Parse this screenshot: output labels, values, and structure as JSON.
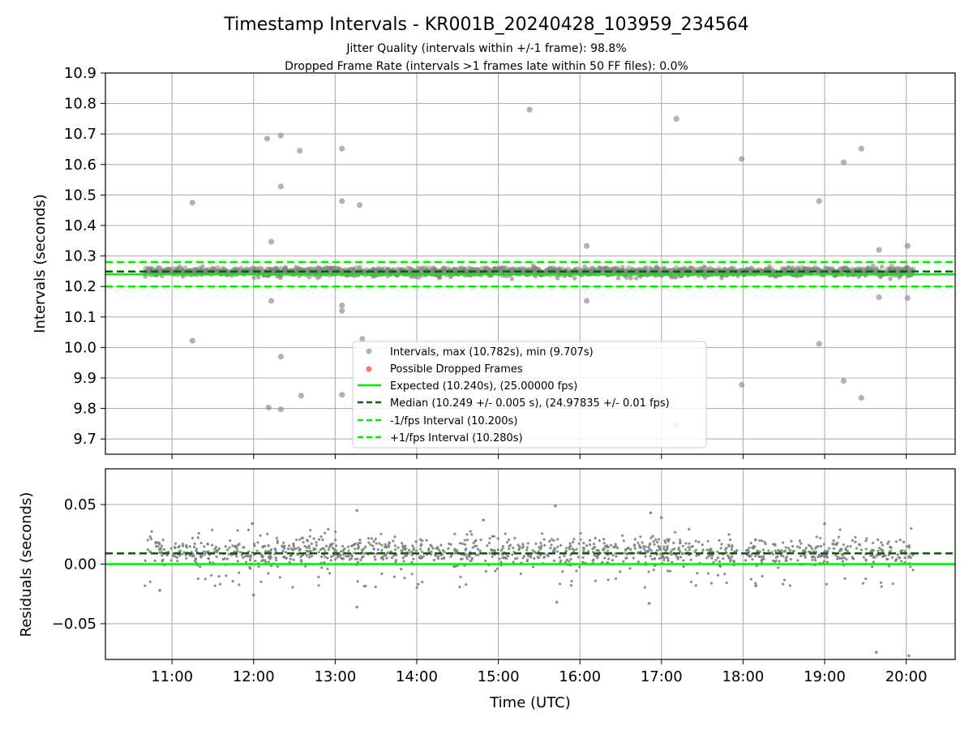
{
  "figure": {
    "title": "Timestamp Intervals - KR001B_20240428_103959_234564",
    "subtitle1": "Jitter Quality (intervals within +/-1 frame): 98.8%",
    "subtitle2": "Dropped Frame Rate (intervals >1 frames late within 50 FF files): 0.0%",
    "xlabel": "Time (UTC)"
  },
  "colors": {
    "intervals": "#808080",
    "dropped": "#ff0000",
    "expected": "#00ee00",
    "median": "#006400",
    "bounds": "#00ee00",
    "grid": "#b0b0b0"
  },
  "chart_data": [
    {
      "type": "scatter",
      "ylabel": "Intervals (seconds)",
      "ylim": [
        9.65,
        10.9
      ],
      "xlim": [
        "10:11",
        "20:36"
      ],
      "y_ticks": [
        "9.7",
        "9.8",
        "9.9",
        "10.0",
        "10.1",
        "10.2",
        "10.3",
        "10.4",
        "10.5",
        "10.6",
        "10.7",
        "10.8",
        "10.9"
      ],
      "x_ticks": [
        "11:00",
        "12:00",
        "13:00",
        "14:00",
        "15:00",
        "16:00",
        "17:00",
        "18:00",
        "19:00",
        "20:00"
      ],
      "grid": true,
      "legend_position": "lower-center",
      "legend": [
        "Intervals, max (10.782s), min (9.707s)",
        "Possible Dropped Frames",
        "Expected (10.240s), (25.00000 fps)",
        "Median (10.249 +/- 0.005 s), (24.97835 +/- 0.01 fps)",
        "-1/fps Interval (10.200s)",
        "+1/fps Interval (10.280s)"
      ],
      "reference_lines": {
        "expected": 10.24,
        "median": 10.249,
        "lower_bound": 10.2,
        "upper_bound": 10.28
      },
      "band": {
        "x_start": "10:40",
        "x_end": "20:05",
        "y_low": 10.225,
        "y_high": 10.27
      },
      "outliers": [
        {
          "x": "11:15",
          "y": 10.475
        },
        {
          "x": "11:15",
          "y": 10.022
        },
        {
          "x": "12:10",
          "y": 10.685
        },
        {
          "x": "12:13",
          "y": 10.347
        },
        {
          "x": "12:13",
          "y": 10.153
        },
        {
          "x": "12:11",
          "y": 9.803
        },
        {
          "x": "12:20",
          "y": 10.695
        },
        {
          "x": "12:20",
          "y": 10.528
        },
        {
          "x": "12:20",
          "y": 9.97
        },
        {
          "x": "12:20",
          "y": 9.797
        },
        {
          "x": "12:34",
          "y": 10.645
        },
        {
          "x": "12:35",
          "y": 9.842
        },
        {
          "x": "13:05",
          "y": 10.652
        },
        {
          "x": "13:05",
          "y": 10.48
        },
        {
          "x": "13:05",
          "y": 10.138
        },
        {
          "x": "13:05",
          "y": 10.12
        },
        {
          "x": "13:05",
          "y": 9.845
        },
        {
          "x": "13:18",
          "y": 10.467
        },
        {
          "x": "13:20",
          "y": 10.028
        },
        {
          "x": "15:23",
          "y": 10.78
        },
        {
          "x": "16:05",
          "y": 10.333
        },
        {
          "x": "16:05",
          "y": 10.153
        },
        {
          "x": "17:11",
          "y": 10.75
        },
        {
          "x": "17:11",
          "y": 9.745
        },
        {
          "x": "17:59",
          "y": 10.618
        },
        {
          "x": "17:59",
          "y": 9.878
        },
        {
          "x": "18:56",
          "y": 10.48
        },
        {
          "x": "18:56",
          "y": 10.012
        },
        {
          "x": "19:14",
          "y": 10.607
        },
        {
          "x": "19:14",
          "y": 9.89
        },
        {
          "x": "19:27",
          "y": 10.652
        },
        {
          "x": "19:27",
          "y": 9.835
        },
        {
          "x": "19:40",
          "y": 10.32
        },
        {
          "x": "19:40",
          "y": 10.165
        },
        {
          "x": "20:01",
          "y": 10.333
        },
        {
          "x": "20:01",
          "y": 10.162
        }
      ]
    },
    {
      "type": "scatter",
      "ylabel": "Residuals (seconds)",
      "ylim": [
        -0.08,
        0.08
      ],
      "xlim": [
        "10:11",
        "20:36"
      ],
      "y_ticks": [
        "−0.05",
        "0.00",
        "0.05"
      ],
      "x_ticks": [
        "11:00",
        "12:00",
        "13:00",
        "14:00",
        "15:00",
        "16:00",
        "17:00",
        "18:00",
        "19:00",
        "20:00"
      ],
      "grid": true,
      "reference_lines": {
        "zero": 0.0,
        "median_offset": 0.009
      },
      "band": {
        "x_start": "10:40",
        "x_end": "20:05",
        "y_low": -0.005,
        "y_high": 0.025
      },
      "outliers": [
        {
          "x": "15:42",
          "y": 0.049
        },
        {
          "x": "13:16",
          "y": 0.045
        },
        {
          "x": "16:52",
          "y": 0.043
        },
        {
          "x": "17:00",
          "y": 0.039
        },
        {
          "x": "14:49",
          "y": 0.037
        },
        {
          "x": "11:59",
          "y": 0.034
        },
        {
          "x": "19:00",
          "y": 0.034
        },
        {
          "x": "13:16",
          "y": -0.036
        },
        {
          "x": "15:43",
          "y": -0.032
        },
        {
          "x": "16:51",
          "y": -0.033
        },
        {
          "x": "12:00",
          "y": -0.026
        },
        {
          "x": "19:38",
          "y": -0.074
        },
        {
          "x": "20:02",
          "y": -0.077
        },
        {
          "x": "10:51",
          "y": -0.022
        }
      ]
    }
  ]
}
